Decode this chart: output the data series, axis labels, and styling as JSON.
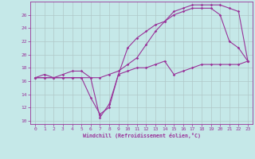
{
  "xlabel": "Windchill (Refroidissement éolien,°C)",
  "bg_color": "#c5e8e8",
  "line_color": "#993399",
  "grid_color": "#b0c8c8",
  "xlim": [
    -0.5,
    23.5
  ],
  "ylim": [
    9.5,
    28.0
  ],
  "yticks": [
    10,
    12,
    14,
    16,
    18,
    20,
    22,
    24,
    26
  ],
  "xticks": [
    0,
    1,
    2,
    3,
    4,
    5,
    6,
    7,
    8,
    9,
    10,
    11,
    12,
    13,
    14,
    15,
    16,
    17,
    18,
    19,
    20,
    21,
    22,
    23
  ],
  "line1_x": [
    0,
    1,
    2,
    3,
    4,
    5,
    6,
    7,
    8,
    9,
    10,
    11,
    12,
    13,
    14,
    15,
    16,
    17,
    18,
    19,
    20,
    21,
    22,
    23
  ],
  "line1_y": [
    16.5,
    17.0,
    16.5,
    16.5,
    16.5,
    16.5,
    16.5,
    10.5,
    12.5,
    17.0,
    21.0,
    22.5,
    23.5,
    24.5,
    25.0,
    26.0,
    26.5,
    27.0,
    27.0,
    27.0,
    26.0,
    22.0,
    21.0,
    19.0
  ],
  "line2_x": [
    0,
    1,
    2,
    3,
    4,
    5,
    6,
    7,
    8,
    9,
    10,
    11,
    12,
    13,
    14,
    15,
    16,
    17,
    18,
    19,
    20,
    21,
    22,
    23
  ],
  "line2_y": [
    16.5,
    16.5,
    16.5,
    17.0,
    17.5,
    17.5,
    16.5,
    16.5,
    17.0,
    17.5,
    18.5,
    19.5,
    21.5,
    23.5,
    25.0,
    26.5,
    27.0,
    27.5,
    27.5,
    27.5,
    27.5,
    27.0,
    26.5,
    19.0
  ],
  "line3_x": [
    0,
    1,
    2,
    3,
    4,
    5,
    6,
    7,
    8,
    9,
    10,
    11,
    12,
    13,
    14,
    15,
    16,
    17,
    18,
    19,
    20,
    21,
    22,
    23
  ],
  "line3_y": [
    16.5,
    16.5,
    16.5,
    16.5,
    16.5,
    16.5,
    13.5,
    11.0,
    12.0,
    17.0,
    17.5,
    18.0,
    18.0,
    18.5,
    19.0,
    17.0,
    17.5,
    18.0,
    18.5,
    18.5,
    18.5,
    18.5,
    18.5,
    19.0
  ]
}
